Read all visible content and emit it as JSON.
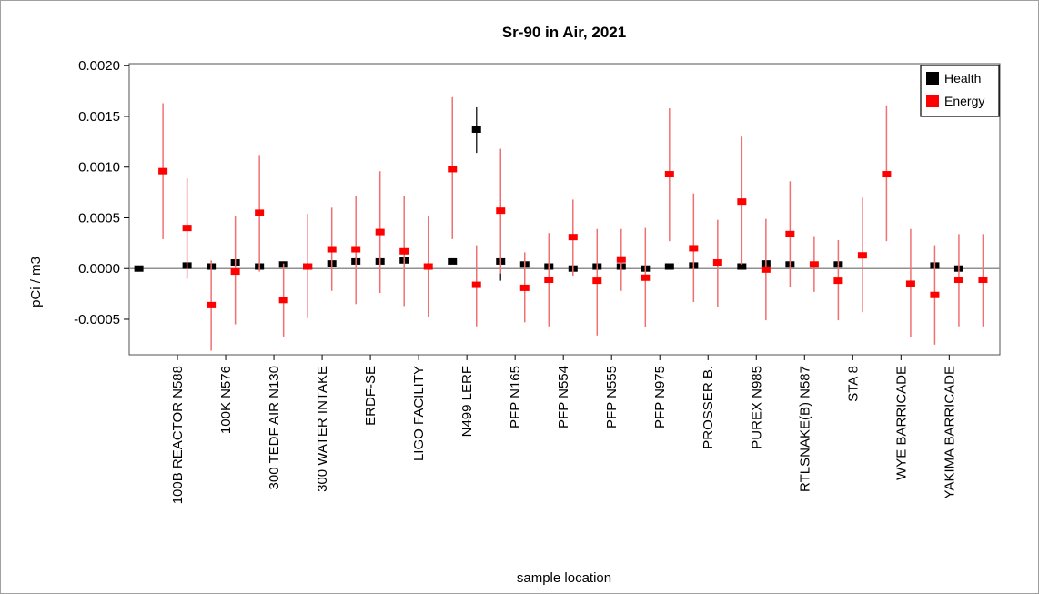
{
  "chart_data": {
    "type": "scatter",
    "title": "Sr-90 in Air, 2021",
    "xlabel": "sample location",
    "ylabel": "pCi / m3",
    "ylim": [
      -0.00085,
      0.00202
    ],
    "yticks": [
      -0.0005,
      0.0,
      0.0005,
      0.001,
      0.0015,
      0.002
    ],
    "ytick_labels": [
      "-0.0005",
      "0.0000",
      "0.0005",
      "0.0010",
      "0.0015",
      "0.0020"
    ],
    "categories": [
      "100B REACTOR N588",
      "100K N576",
      "300 TEDF AIR N130",
      "300 WATER INTAKE",
      "ERDF-SE",
      "LIGO FACILITY",
      "N499 LERF",
      "PFP N165",
      "PFP N554",
      "PFP N555",
      "PFP N975",
      "PROSSER B.",
      "PUREX N985",
      "RTLSNAKE(B) N587",
      "STA 8",
      "WYE BARRICADE",
      "YAKIMA BARRICADE"
    ],
    "legend_position": "top-right",
    "grid": false,
    "zero_line": true,
    "series": [
      {
        "name": "Health",
        "color": "#000000",
        "points": [
          {
            "x": 0.2,
            "y": 0.0
          },
          {
            "x": 1.2,
            "y": 3e-05
          },
          {
            "x": 1.7,
            "y": 2e-05
          },
          {
            "x": 2.2,
            "y": 6e-05
          },
          {
            "x": 2.7,
            "y": 2e-05
          },
          {
            "x": 3.2,
            "y": 4e-05
          },
          {
            "x": 3.7,
            "y": 2e-05
          },
          {
            "x": 4.2,
            "y": 5e-05
          },
          {
            "x": 4.7,
            "y": 7e-05
          },
          {
            "x": 5.2,
            "y": 7e-05
          },
          {
            "x": 5.7,
            "y": 8e-05
          },
          {
            "x": 6.7,
            "y": 7e-05
          },
          {
            "x": 7.2,
            "y": 0.00137,
            "err_low": 0.00114,
            "err_high": 0.00159
          },
          {
            "x": 7.7,
            "y": 7e-05,
            "err_low": -0.00012,
            "err_high": 0.00027
          },
          {
            "x": 8.2,
            "y": 4e-05
          },
          {
            "x": 8.7,
            "y": 2e-05
          },
          {
            "x": 9.2,
            "y": 0.0
          },
          {
            "x": 9.7,
            "y": 2e-05
          },
          {
            "x": 10.2,
            "y": 2e-05
          },
          {
            "x": 10.7,
            "y": 0.0
          },
          {
            "x": 11.2,
            "y": 2e-05
          },
          {
            "x": 11.7,
            "y": 3e-05
          },
          {
            "x": 12.7,
            "y": 2e-05
          },
          {
            "x": 13.2,
            "y": 5e-05
          },
          {
            "x": 13.7,
            "y": 4e-05
          },
          {
            "x": 14.7,
            "y": 4e-05
          },
          {
            "x": 16.7,
            "y": 3e-05
          },
          {
            "x": 17.2,
            "y": 0.0
          }
        ]
      },
      {
        "name": "Energy",
        "color": "#ff0000",
        "points": [
          {
            "x": 0.7,
            "y": 0.00096,
            "err_low": 0.00029,
            "err_high": 0.00163
          },
          {
            "x": 1.2,
            "y": 0.0004,
            "err_low": -0.0001,
            "err_high": 0.00089
          },
          {
            "x": 1.7,
            "y": -0.00036,
            "err_low": -0.00081,
            "err_high": 8e-05
          },
          {
            "x": 2.2,
            "y": -3e-05,
            "err_low": -0.00055,
            "err_high": 0.00052
          },
          {
            "x": 2.7,
            "y": 0.00055,
            "err_low": -3e-05,
            "err_high": 0.00112
          },
          {
            "x": 3.2,
            "y": -0.00031,
            "err_low": -0.00067,
            "err_high": 5e-05
          },
          {
            "x": 3.7,
            "y": 2e-05,
            "err_low": -0.00049,
            "err_high": 0.00054
          },
          {
            "x": 4.2,
            "y": 0.00019,
            "err_low": -0.00022,
            "err_high": 0.0006
          },
          {
            "x": 4.7,
            "y": 0.00019,
            "err_low": -0.00035,
            "err_high": 0.00072
          },
          {
            "x": 5.2,
            "y": 0.00036,
            "err_low": -0.00024,
            "err_high": 0.00096
          },
          {
            "x": 5.7,
            "y": 0.00017,
            "err_low": -0.00037,
            "err_high": 0.00072
          },
          {
            "x": 6.2,
            "y": 2e-05,
            "err_low": -0.00048,
            "err_high": 0.00052
          },
          {
            "x": 6.7,
            "y": 0.00098,
            "err_low": 0.00029,
            "err_high": 0.00169
          },
          {
            "x": 7.2,
            "y": -0.00016,
            "err_low": -0.00057,
            "err_high": 0.00023
          },
          {
            "x": 7.7,
            "y": 0.00057,
            "err_low": -5e-05,
            "err_high": 0.00118
          },
          {
            "x": 8.2,
            "y": -0.00019,
            "err_low": -0.00053,
            "err_high": 0.00016
          },
          {
            "x": 8.7,
            "y": -0.00011,
            "err_low": -0.00057,
            "err_high": 0.00035
          },
          {
            "x": 9.2,
            "y": 0.00031,
            "err_low": -7e-05,
            "err_high": 0.00068
          },
          {
            "x": 9.7,
            "y": -0.00012,
            "err_low": -0.00066,
            "err_high": 0.00039
          },
          {
            "x": 10.2,
            "y": 9e-05,
            "err_low": -0.00022,
            "err_high": 0.00039
          },
          {
            "x": 10.7,
            "y": -9e-05,
            "err_low": -0.00058,
            "err_high": 0.0004
          },
          {
            "x": 11.2,
            "y": 0.00093,
            "err_low": 0.00027,
            "err_high": 0.00158
          },
          {
            "x": 11.7,
            "y": 0.0002,
            "err_low": -0.00033,
            "err_high": 0.00074
          },
          {
            "x": 12.2,
            "y": 6e-05,
            "err_low": -0.00038,
            "err_high": 0.00048
          },
          {
            "x": 12.7,
            "y": 0.00066,
            "err_low": 4e-05,
            "err_high": 0.0013
          },
          {
            "x": 13.2,
            "y": -1e-05,
            "err_low": -0.00051,
            "err_high": 0.00049
          },
          {
            "x": 13.7,
            "y": 0.00034,
            "err_low": -0.00018,
            "err_high": 0.00086
          },
          {
            "x": 14.2,
            "y": 4e-05,
            "err_low": -0.00023,
            "err_high": 0.00032
          },
          {
            "x": 14.7,
            "y": -0.00012,
            "err_low": -0.00051,
            "err_high": 0.00028
          },
          {
            "x": 15.2,
            "y": 0.00013,
            "err_low": -0.00043,
            "err_high": 0.0007
          },
          {
            "x": 15.7,
            "y": 0.00093,
            "err_low": 0.00027,
            "err_high": 0.00161
          },
          {
            "x": 16.2,
            "y": -0.00015,
            "err_low": -0.00068,
            "err_high": 0.00039
          },
          {
            "x": 16.7,
            "y": -0.00026,
            "err_low": -0.00075,
            "err_high": 0.00023
          },
          {
            "x": 17.2,
            "y": -0.00011,
            "err_low": -0.00057,
            "err_high": 0.00034
          },
          {
            "x": 17.7,
            "y": -0.00011,
            "err_low": -0.00057,
            "err_high": 0.00034
          }
        ]
      }
    ]
  }
}
